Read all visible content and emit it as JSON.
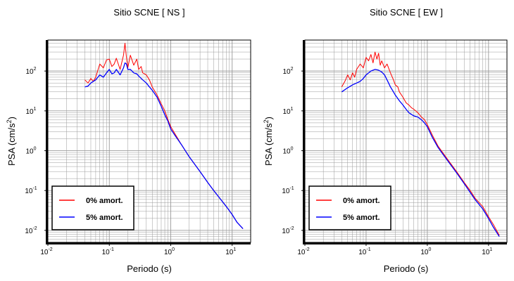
{
  "chart_data": [
    {
      "type": "line",
      "title": "Sitio SCNE [ NS ]",
      "xlabel": "Periodo (s)",
      "ylabel": "PSA (cm/s2)",
      "ylabel_base": "PSA (cm/s",
      "ylabel_sup": "2",
      "ylabel_close": ")",
      "x_scale": "log",
      "y_scale": "log",
      "xlim": [
        0.01,
        20
      ],
      "ylim": [
        0.005,
        600
      ],
      "grid": true,
      "legend_position": "bottom-left",
      "x_ticks": [
        {
          "base": "10",
          "exp": "-2"
        },
        {
          "base": "10",
          "exp": "-1"
        },
        {
          "base": "10",
          "exp": "0"
        },
        {
          "base": "10",
          "exp": "1"
        }
      ],
      "y_ticks": [
        {
          "base": "10",
          "exp": "-2"
        },
        {
          "base": "10",
          "exp": "-1"
        },
        {
          "base": "10",
          "exp": "0"
        },
        {
          "base": "10",
          "exp": "1"
        },
        {
          "base": "10",
          "exp": "2"
        }
      ],
      "series": [
        {
          "name": "0% amort.",
          "color": "#ff0000",
          "x": [
            0.04,
            0.045,
            0.05,
            0.055,
            0.06,
            0.07,
            0.08,
            0.09,
            0.1,
            0.11,
            0.12,
            0.13,
            0.15,
            0.17,
            0.18,
            0.19,
            0.2,
            0.22,
            0.25,
            0.28,
            0.3,
            0.33,
            0.35,
            0.4,
            0.45,
            0.5,
            0.6,
            0.7,
            0.8,
            0.9,
            1.0,
            1.2,
            1.5,
            2,
            3,
            4,
            5,
            6,
            8,
            10,
            12,
            15
          ],
          "y": [
            60,
            50,
            65,
            55,
            70,
            150,
            120,
            190,
            200,
            130,
            150,
            210,
            110,
            250,
            500,
            220,
            120,
            250,
            140,
            200,
            110,
            130,
            90,
            80,
            60,
            40,
            25,
            15,
            10,
            6,
            4,
            2.5,
            1.4,
            0.7,
            0.3,
            0.16,
            0.1,
            0.07,
            0.04,
            0.025,
            0.016,
            0.011
          ]
        },
        {
          "name": "5% amort.",
          "color": "#0000ff",
          "x": [
            0.04,
            0.045,
            0.05,
            0.055,
            0.06,
            0.07,
            0.08,
            0.09,
            0.1,
            0.11,
            0.12,
            0.13,
            0.15,
            0.17,
            0.18,
            0.19,
            0.2,
            0.22,
            0.25,
            0.28,
            0.3,
            0.35,
            0.4,
            0.45,
            0.5,
            0.6,
            0.7,
            0.8,
            0.9,
            1.0,
            1.2,
            1.5,
            2,
            3,
            4,
            5,
            6,
            8,
            10,
            12,
            15
          ],
          "y": [
            40,
            42,
            50,
            55,
            60,
            80,
            70,
            90,
            110,
            85,
            90,
            110,
            80,
            120,
            160,
            150,
            110,
            110,
            90,
            85,
            75,
            60,
            50,
            40,
            33,
            22,
            13,
            8,
            5.5,
            3.5,
            2.3,
            1.4,
            0.7,
            0.3,
            0.16,
            0.1,
            0.07,
            0.04,
            0.025,
            0.016,
            0.011
          ]
        }
      ]
    },
    {
      "type": "line",
      "title": "Sitio SCNE [ EW ]",
      "xlabel": "Periodo (s)",
      "ylabel": "PSA (cm/s2)",
      "ylabel_base": "PSA (cm/s",
      "ylabel_sup": "2",
      "ylabel_close": ")",
      "x_scale": "log",
      "y_scale": "log",
      "xlim": [
        0.01,
        20
      ],
      "ylim": [
        0.005,
        600
      ],
      "grid": true,
      "legend_position": "bottom-left",
      "x_ticks": [
        {
          "base": "10",
          "exp": "-2"
        },
        {
          "base": "10",
          "exp": "-1"
        },
        {
          "base": "10",
          "exp": "0"
        },
        {
          "base": "10",
          "exp": "1"
        }
      ],
      "y_ticks": [
        {
          "base": "10",
          "exp": "-2"
        },
        {
          "base": "10",
          "exp": "-1"
        },
        {
          "base": "10",
          "exp": "0"
        },
        {
          "base": "10",
          "exp": "1"
        },
        {
          "base": "10",
          "exp": "2"
        }
      ],
      "series": [
        {
          "name": "0% amort.",
          "color": "#ff0000",
          "x": [
            0.04,
            0.045,
            0.05,
            0.055,
            0.06,
            0.065,
            0.07,
            0.08,
            0.09,
            0.1,
            0.11,
            0.12,
            0.13,
            0.14,
            0.15,
            0.16,
            0.17,
            0.18,
            0.2,
            0.22,
            0.25,
            0.28,
            0.3,
            0.33,
            0.35,
            0.4,
            0.45,
            0.5,
            0.55,
            0.6,
            0.7,
            0.8,
            0.9,
            1.0,
            1.2,
            1.5,
            2,
            3,
            4,
            5,
            6,
            8,
            10,
            12,
            15
          ],
          "y": [
            40,
            55,
            80,
            60,
            90,
            70,
            110,
            150,
            120,
            220,
            180,
            260,
            160,
            300,
            200,
            280,
            140,
            180,
            120,
            150,
            90,
            60,
            45,
            40,
            30,
            22,
            16,
            14,
            12,
            11,
            9,
            7,
            6,
            4.5,
            2.5,
            1.3,
            0.7,
            0.3,
            0.16,
            0.1,
            0.065,
            0.04,
            0.022,
            0.014,
            0.0075
          ]
        },
        {
          "name": "5% amort.",
          "color": "#0000ff",
          "x": [
            0.04,
            0.05,
            0.06,
            0.07,
            0.08,
            0.09,
            0.1,
            0.12,
            0.14,
            0.16,
            0.18,
            0.2,
            0.22,
            0.25,
            0.28,
            0.3,
            0.35,
            0.4,
            0.45,
            0.5,
            0.6,
            0.7,
            0.8,
            0.9,
            1.0,
            1.2,
            1.5,
            2,
            3,
            4,
            5,
            6,
            8,
            10,
            12,
            15
          ],
          "y": [
            30,
            38,
            45,
            50,
            55,
            65,
            80,
            100,
            110,
            105,
            95,
            80,
            60,
            40,
            30,
            25,
            18,
            14,
            11,
            9,
            7.5,
            7,
            6,
            5,
            4,
            2.2,
            1.2,
            0.65,
            0.28,
            0.15,
            0.09,
            0.06,
            0.035,
            0.02,
            0.012,
            0.007
          ]
        }
      ]
    }
  ]
}
